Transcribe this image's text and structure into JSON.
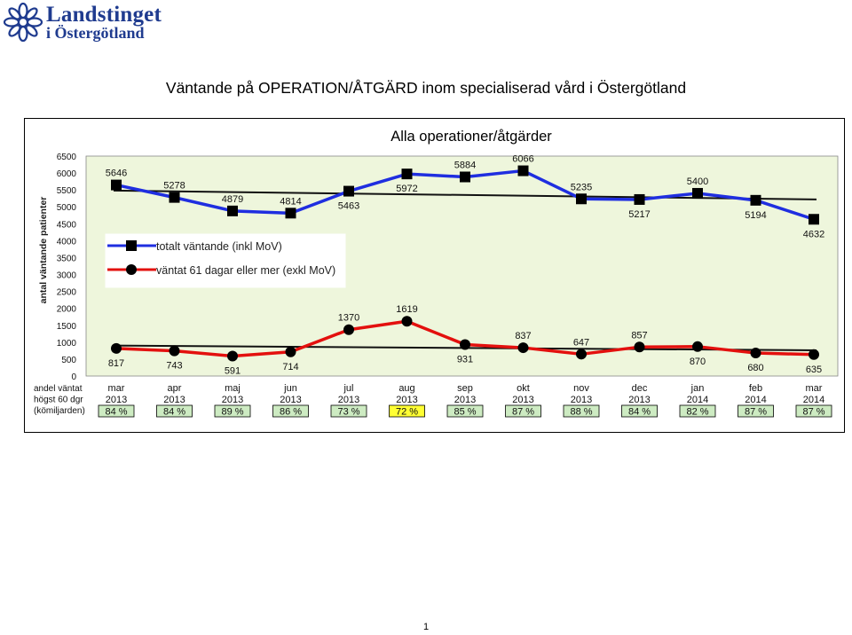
{
  "header": {
    "logo_line1": "Landstinget",
    "logo_line2": "i Östergötland",
    "title": "Väntande på OPERATION/ÅTGÄRD inom specialiserad vård i Östergötland"
  },
  "colors": {
    "plot_background": "#eef6dc",
    "series_total": "#1f2ee0",
    "series_waited": "#e3100e",
    "trend": "#111111",
    "badge_green": "#cdebc2",
    "badge_yellow": "#ffff33",
    "logo_blue": "#1f3b8f"
  },
  "chart_data": {
    "type": "line",
    "title": "Alla operationer/åtgärder",
    "ylabel": "antal väntande patienter",
    "ylim": [
      0,
      6500
    ],
    "yticks": [
      0,
      500,
      1000,
      1500,
      2000,
      2500,
      3000,
      3500,
      4000,
      4500,
      5000,
      5500,
      6000,
      6500
    ],
    "grid": false,
    "legend_position": "top-left",
    "categories": [
      [
        "mar",
        "2013"
      ],
      [
        "apr",
        "2013"
      ],
      [
        "maj",
        "2013"
      ],
      [
        "jun",
        "2013"
      ],
      [
        "jul",
        "2013"
      ],
      [
        "aug",
        "2013"
      ],
      [
        "sep",
        "2013"
      ],
      [
        "okt",
        "2013"
      ],
      [
        "nov",
        "2013"
      ],
      [
        "dec",
        "2013"
      ],
      [
        "jan",
        "2014"
      ],
      [
        "feb",
        "2014"
      ],
      [
        "mar",
        "2014"
      ]
    ],
    "series": [
      {
        "name": "totalt väntande (inkl MoV)",
        "marker": "square",
        "values": [
          5646,
          5278,
          4879,
          4814,
          5463,
          5972,
          5884,
          6066,
          5235,
          5217,
          5400,
          5194,
          4632
        ],
        "label_above": [
          true,
          true,
          true,
          true,
          false,
          false,
          true,
          true,
          true,
          false,
          true,
          false,
          false
        ],
        "trend": [
          5480,
          5220
        ]
      },
      {
        "name": "väntat 61 dagar eller mer (exkl MoV)",
        "marker": "circle",
        "values": [
          817,
          743,
          591,
          714,
          1370,
          1619,
          931,
          837,
          647,
          857,
          870,
          680,
          635
        ],
        "label_above": [
          false,
          false,
          false,
          false,
          true,
          true,
          false,
          true,
          true,
          true,
          false,
          false,
          false
        ],
        "trend": [
          900,
          760
        ]
      }
    ],
    "table_row_label": [
      "andel väntat",
      "högst 60 dgr",
      "(kömiljarden)"
    ],
    "andel_values": [
      "84 %",
      "84 %",
      "89 %",
      "86 %",
      "73 %",
      "72 %",
      "85 %",
      "87 %",
      "88 %",
      "84 %",
      "82 %",
      "87 %",
      "87 %"
    ],
    "andel_highlight": [
      false,
      false,
      false,
      false,
      false,
      true,
      false,
      false,
      false,
      false,
      false,
      false,
      false
    ]
  },
  "footer": {
    "page_number": "1"
  }
}
